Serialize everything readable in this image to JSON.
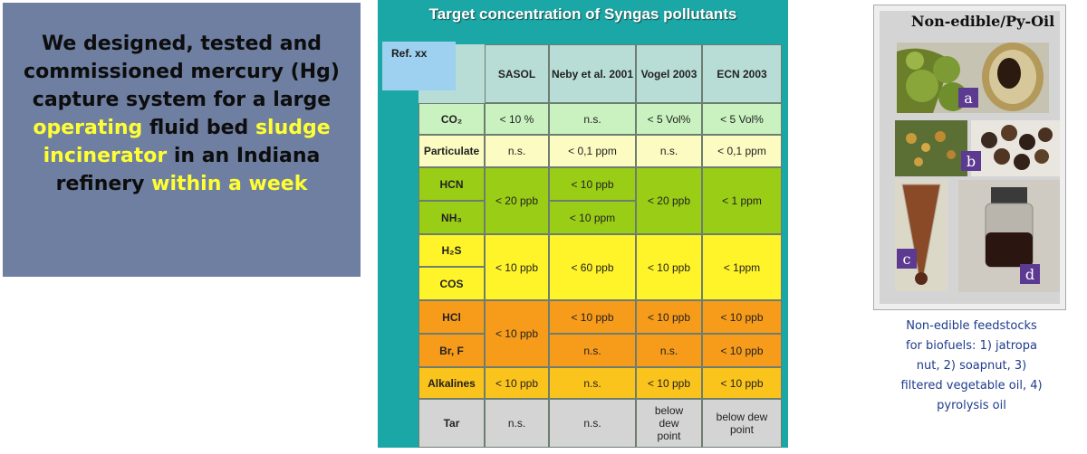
{
  "left_panel": {
    "line1": "We designed, tested and",
    "line2": "commissioned mercury (Hg)",
    "line3": "capture system for a large",
    "line4_hl1": "operating",
    "line4_mid": " fluid bed ",
    "line4_hl2": "sludge",
    "line5_hl": "incinerator",
    "line5_rest": " in an Indiana",
    "line6_start": "refinery ",
    "line6_hl": "within a week"
  },
  "slide": {
    "title": "Target concentration of  Syngas pollutants",
    "ref": "Ref. xx",
    "columns": [
      "SASOL",
      "Neby et al. 2001",
      "Vogel 2003",
      "ECN 2003"
    ],
    "rows": {
      "co2": {
        "label": "CO₂",
        "sasol": "< 10 %",
        "neby": "n.s.",
        "vogel": "< 5 Vol%",
        "ecn": "< 5 Vol%"
      },
      "particulate": {
        "label": "Particulate",
        "sasol": "n.s.",
        "neby": "< 0,1 ppm",
        "vogel": "n.s.",
        "ecn": "< 0,1 ppm"
      },
      "hcn": {
        "label": "HCN",
        "neby": "< 10 ppb"
      },
      "nh3": {
        "label": "NH₃",
        "neby": "< 10 ppm"
      },
      "hcn_nh3": {
        "sasol": "< 20 ppb",
        "vogel": "< 20 ppb",
        "ecn": "< 1 ppm"
      },
      "h2s": {
        "label": "H₂S"
      },
      "cos": {
        "label": "COS"
      },
      "h2s_cos": {
        "sasol": "< 10 ppb",
        "neby": "< 60 ppb",
        "vogel": "< 10 ppb",
        "ecn": "< 1ppm"
      },
      "hcl": {
        "label": "HCl",
        "neby": "< 10 ppb",
        "vogel": "< 10 ppb",
        "ecn": "< 10 ppb"
      },
      "brf": {
        "label": "Br, F",
        "neby": "n.s.",
        "vogel": "n.s.",
        "ecn": "< 10 ppb"
      },
      "hcl_brf": {
        "sasol": "< 10 ppb"
      },
      "alkalines": {
        "label": "Alkalines",
        "sasol": "< 10 ppb",
        "neby": "n.s.",
        "vogel": "< 10 ppb",
        "ecn": "< 10 ppb"
      },
      "tar": {
        "label": "Tar",
        "sasol": "n.s.",
        "neby": "n.s.",
        "vogel": "below dew point",
        "ecn": "below dew point"
      }
    },
    "colors": {
      "co2": "#c9f2c0",
      "particulate": "#fbfbc2",
      "hcn": "#9acd16",
      "h2s": "#fff32a",
      "hcl": "#f79b1b",
      "alkalines": "#fbc41c",
      "tar": "#d4d4d4"
    }
  },
  "image_panel": {
    "title": "Non-edible/Py-Oil",
    "badges": [
      "a",
      "b",
      "c",
      "d"
    ],
    "caption_lines": [
      "Non-edible feedstocks",
      "for biofuels: 1) jatropa",
      "nut, 2) soapnut, 3)",
      "filtered vegetable oil, 4)",
      "pyrolysis oil"
    ]
  }
}
